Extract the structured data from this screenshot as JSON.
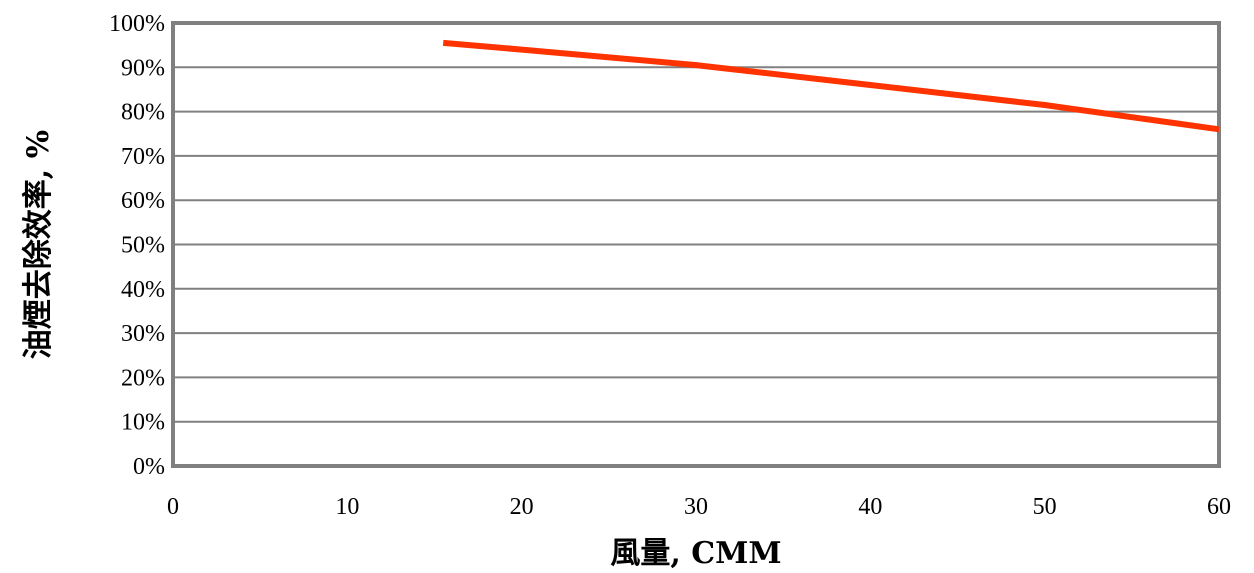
{
  "chart_data": {
    "type": "line",
    "xlabel": "風量, CMM",
    "ylabel": "油煙去除效率, %",
    "xlim": [
      0,
      60
    ],
    "ylim": [
      0,
      1
    ],
    "x_ticks": [
      0,
      10,
      20,
      30,
      40,
      50,
      60
    ],
    "x_tick_labels": [
      "0",
      "10",
      "20",
      "30",
      "40",
      "50",
      "60"
    ],
    "y_ticks": [
      0,
      0.1,
      0.2,
      0.3,
      0.4,
      0.5,
      0.6,
      0.7,
      0.8,
      0.9,
      1.0
    ],
    "y_tick_labels": [
      "0%",
      "10%",
      "20%",
      "30%",
      "40%",
      "50%",
      "60%",
      "70%",
      "80%",
      "90%",
      "100%"
    ],
    "grid": "horizontal",
    "series": [
      {
        "color": "#ff3300",
        "x": [
          15.5,
          20,
          30,
          40,
          50,
          60
        ],
        "y": [
          0.955,
          0.94,
          0.905,
          0.86,
          0.815,
          0.76
        ]
      }
    ]
  }
}
